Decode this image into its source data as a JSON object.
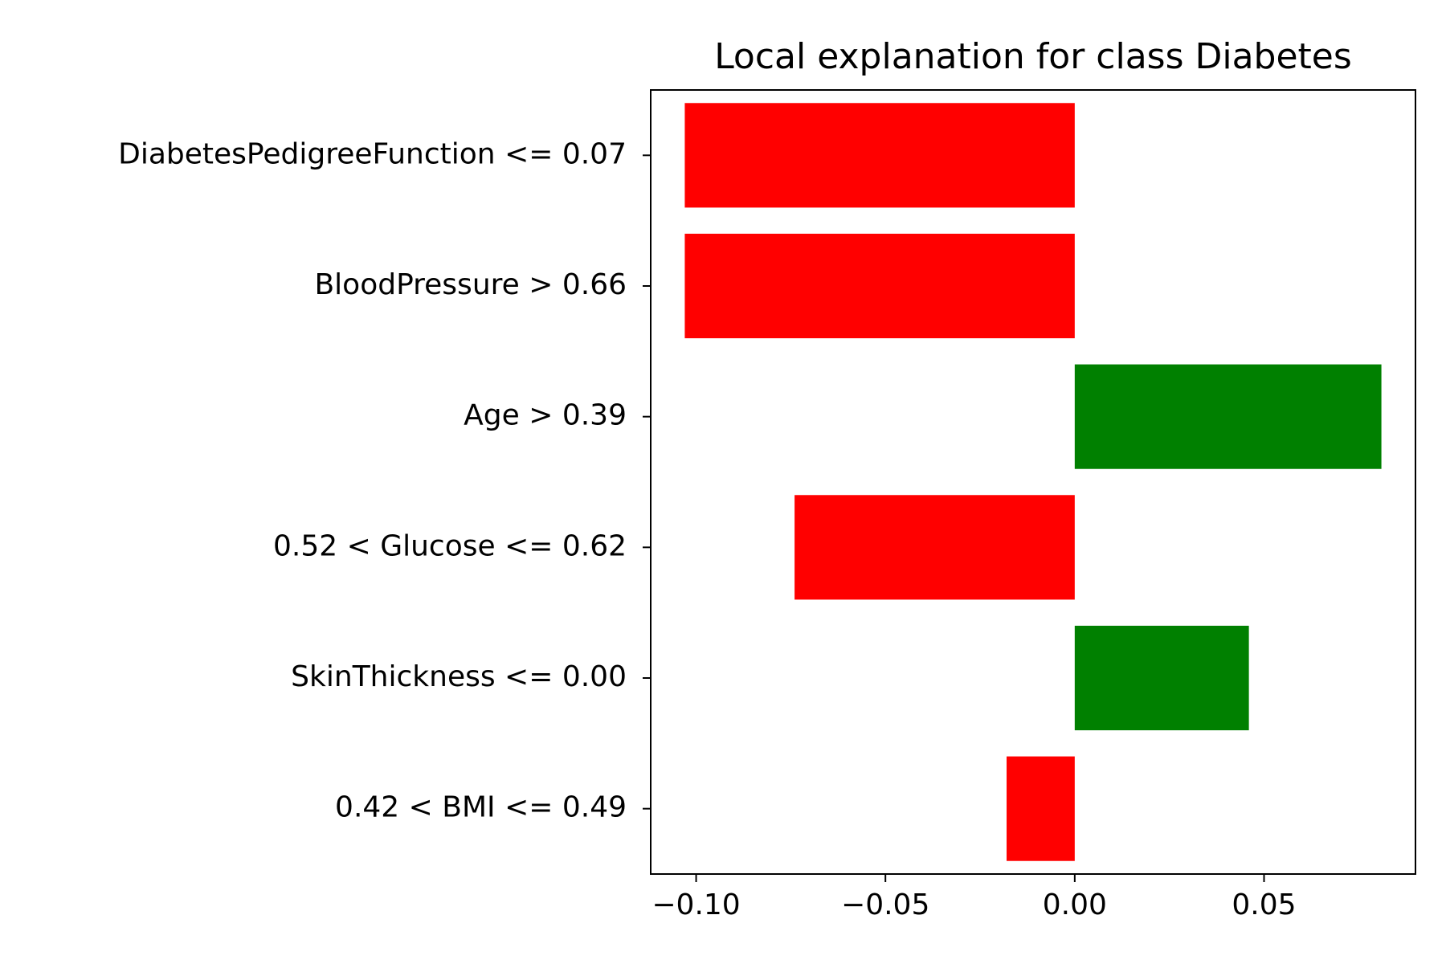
{
  "chart_data": {
    "type": "bar",
    "orientation": "horizontal",
    "title": "Local explanation for class Diabetes",
    "xlabel": "",
    "ylabel": "",
    "xlim": [
      -0.112,
      0.09
    ],
    "grid": false,
    "categories": [
      "DiabetesPedigreeFunction <= 0.07",
      "BloodPressure > 0.66",
      "Age > 0.39",
      "0.52 < Glucose <= 0.62",
      "SkinThickness <= 0.00",
      "0.42 < BMI <= 0.49"
    ],
    "values": [
      -0.103,
      -0.103,
      0.081,
      -0.074,
      0.046,
      -0.018
    ],
    "xticks": [
      -0.1,
      -0.05,
      0.0,
      0.05
    ],
    "xtick_labels": [
      "−0.10",
      "−0.05",
      "0.00",
      "0.05"
    ],
    "colors": {
      "positive": "#008000",
      "negative": "#ff0000"
    }
  }
}
